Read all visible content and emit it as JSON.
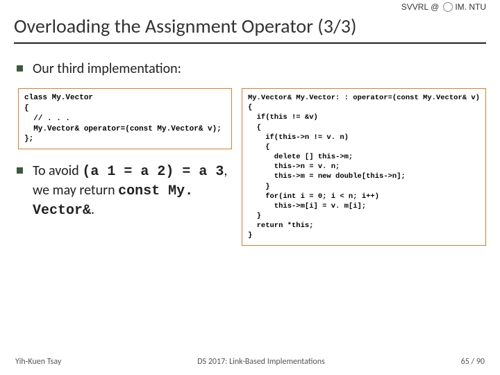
{
  "header": {
    "lab": "SVVRL",
    "org": "IM. NTU"
  },
  "title": "Overloading the Assignment Operator (3/3)",
  "bullets": {
    "first": "Our third implementation:",
    "second_pre": "To avoid ",
    "second_code1": "(a 1 = a 2) = a 3",
    "second_mid": ", we may return ",
    "second_code2": "const My. Vector&",
    "second_post": "."
  },
  "code": {
    "left": "class My.Vector\n{\n  // . . .\n  My.Vector& operator=(const My.Vector& v);\n};",
    "right": "My.Vector& My.Vector: : operator=(const My.Vector& v)\n{\n  if(this != &v)\n  {\n    if(this->n != v. n)\n    {\n      delete [] this->m;\n      this->n = v. n;\n      this->m = new double[this->n];\n    }\n    for(int i = 0; i < n; i++)\n      this->m[i] = v. m[i];\n  }\n  return *this;\n}"
  },
  "footer": {
    "author": "Yih-Kuen Tsay",
    "course": "DS 2017: Link-Based Implementations",
    "page": "65 / 90"
  },
  "colors": {
    "bullet": "#3b5b3b",
    "box_border": "#e07b2a"
  }
}
